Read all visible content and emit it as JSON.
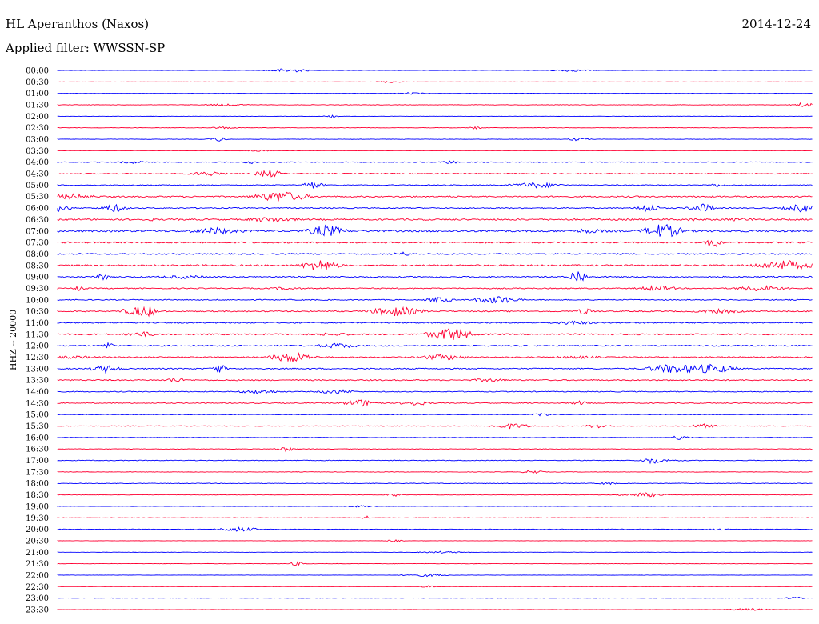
{
  "header": {
    "station": "HL Aperanthos (Naxos)",
    "date": "2014-12-24",
    "filter_label": "Applied filter: WWSSN-SP"
  },
  "chart_data": {
    "type": "line",
    "title": "HL Aperanthos (Naxos)",
    "subtitle": "Applied filter: WWSSN-SP",
    "date": "2014-12-24",
    "ylabel": "HHZ -- 20000",
    "xlabel": "",
    "trace_colors": [
      "#0000ff",
      "#ff0033"
    ],
    "rows": [
      "00:00",
      "00:30",
      "01:00",
      "01:30",
      "02:00",
      "02:30",
      "03:00",
      "03:30",
      "04:00",
      "04:30",
      "05:00",
      "05:30",
      "06:00",
      "06:30",
      "07:00",
      "07:30",
      "08:00",
      "08:30",
      "09:00",
      "09:30",
      "10:00",
      "10:30",
      "11:00",
      "11:30",
      "12:00",
      "12:30",
      "13:00",
      "13:30",
      "14:00",
      "14:30",
      "15:00",
      "15:30",
      "16:00",
      "16:30",
      "17:00",
      "17:30",
      "18:00",
      "18:30",
      "19:00",
      "19:30",
      "20:00",
      "20:30",
      "21:00",
      "21:30",
      "22:00",
      "22:30",
      "23:00",
      "23:30"
    ],
    "noise_levels": [
      0.4,
      0.2,
      0.3,
      0.5,
      0.3,
      0.4,
      0.4,
      0.3,
      0.8,
      1.0,
      0.9,
      1.4,
      1.1,
      1.6,
      2.0,
      1.5,
      1.3,
      1.6,
      1.3,
      1.1,
      1.0,
      1.2,
      1.2,
      1.4,
      1.2,
      1.2,
      1.2,
      1.2,
      0.9,
      0.9,
      0.6,
      0.7,
      0.5,
      0.5,
      0.7,
      0.5,
      0.6,
      0.5,
      0.4,
      0.5,
      0.6,
      0.3,
      0.3,
      0.4,
      0.3,
      0.3,
      0.4,
      0.3
    ]
  }
}
